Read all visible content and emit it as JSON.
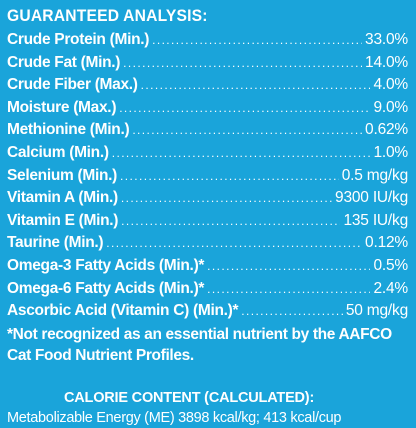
{
  "document": {
    "heading": "GUARANTEED ANALYSIS:",
    "rows": [
      {
        "label": "Crude Protein (Min.)",
        "value": "33.0%"
      },
      {
        "label": "Crude Fat (Min.)",
        "value": "14.0%"
      },
      {
        "label": "Crude Fiber (Max.)",
        "value": "4.0%"
      },
      {
        "label": "Moisture (Max.)",
        "value": "9.0%"
      },
      {
        "label": "Methionine (Min.)",
        "value": "0.62%"
      },
      {
        "label": "Calcium (Min.)",
        "value": "1.0%"
      },
      {
        "label": "Selenium (Min.)",
        "value": "0.5 mg/kg"
      },
      {
        "label": "Vitamin A (Min.)",
        "value": "9300 IU/kg"
      },
      {
        "label": "Vitamin E (Min.)",
        "value": "135 IU/kg"
      },
      {
        "label": "Taurine (Min.)",
        "value": "0.12%"
      },
      {
        "label": "Omega-3 Fatty Acids (Min.)*",
        "value": "0.5%"
      },
      {
        "label": "Omega-6 Fatty Acids (Min.)*",
        "value": "2.4%"
      },
      {
        "label": "Ascorbic Acid (Vitamin C) (Min.)*",
        "value": "50 mg/kg"
      }
    ],
    "footnote": "*Not recognized as an essential nutrient by the AAFCO Cat Food Nutrient Profiles.",
    "calorie_heading": "CALORIE CONTENT (CALCULATED):",
    "calorie_line": "Metabolizable Energy (ME) 3898 kcal/kg; 413 kcal/cup"
  },
  "colors": {
    "background": "#1aa4da",
    "text": "#ffffff"
  }
}
